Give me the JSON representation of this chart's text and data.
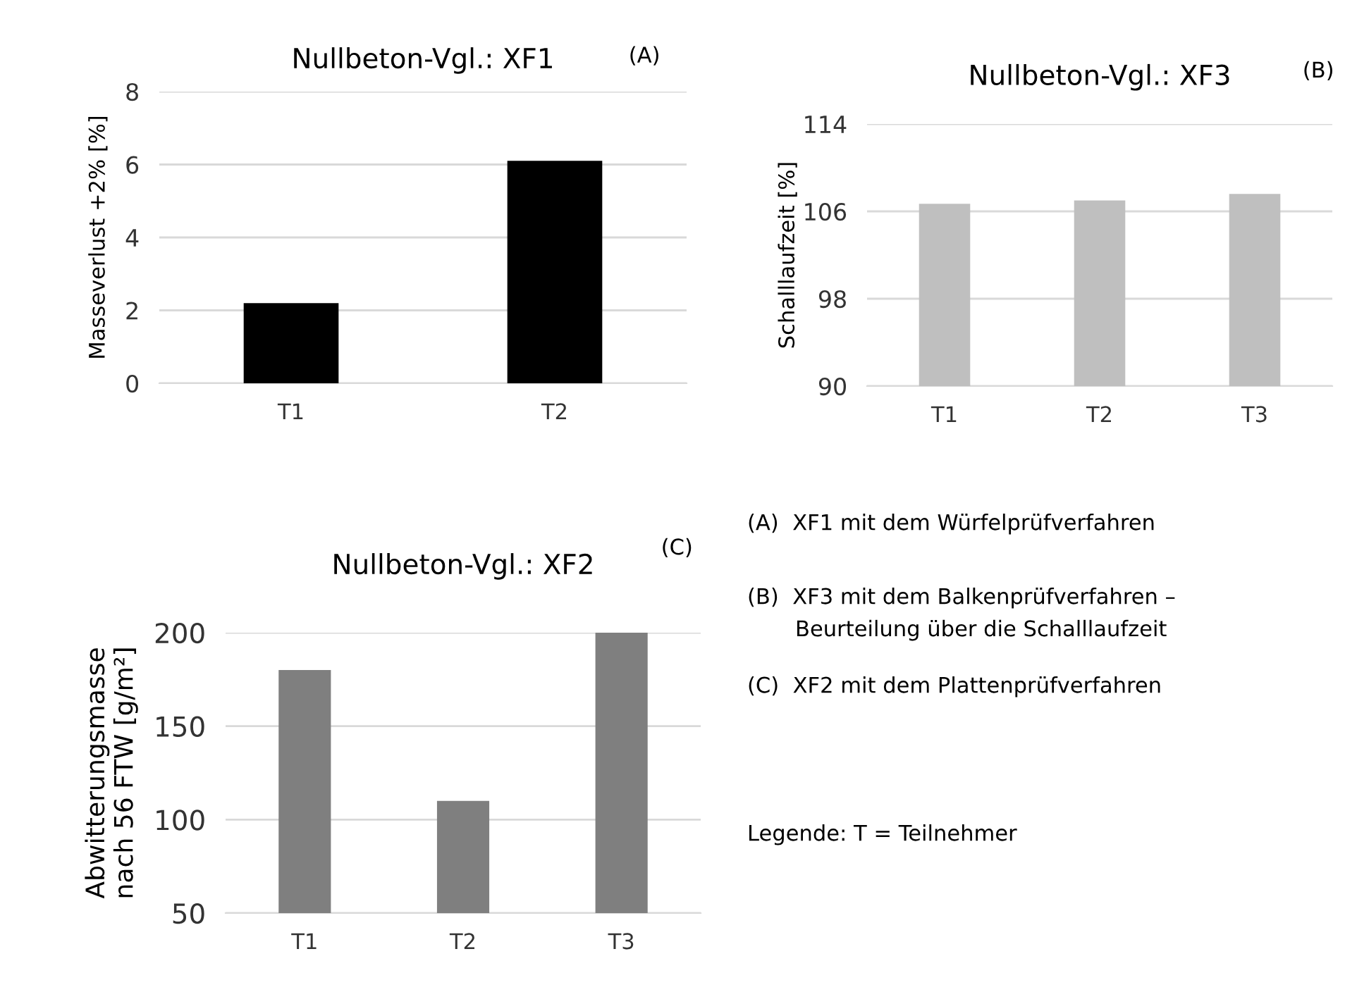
{
  "chart_data": [
    {
      "type": "bar",
      "title": "Nullbeton-Vgl.: XF1",
      "ylabel": "Masseverlust +2% [%]",
      "annotations": [
        "(A)"
      ],
      "categories": [
        "T1",
        "T2"
      ],
      "values": [
        2.2,
        6.1
      ],
      "color": "#000000",
      "ylim": [
        0,
        8
      ],
      "yticks": [
        0,
        2,
        4,
        6,
        8
      ],
      "grid": "y"
    },
    {
      "type": "bar",
      "title": "Nullbeton-Vgl.: XF3",
      "ylabel": "Schalllaufzeit [%]",
      "annotations": [
        "(B)"
      ],
      "categories": [
        "T1",
        "T2",
        "T3"
      ],
      "values": [
        106.7,
        107.0,
        107.6
      ],
      "color": "#bfbfbf",
      "ylim": [
        90,
        114
      ],
      "yticks": [
        90,
        98,
        106,
        114
      ],
      "grid": "y"
    },
    {
      "type": "bar",
      "title": "Nullbeton-Vgl.: XF2",
      "ylabel": "Abwitterungsmasse\nnach 56 FTW [g/m²]",
      "annotations": [
        "(C)"
      ],
      "categories": [
        "T1",
        "T2",
        "T3"
      ],
      "values": [
        180,
        110,
        200
      ],
      "color": "#7f7f7f",
      "ylim": [
        50,
        200
      ],
      "yticks": [
        50,
        100,
        150,
        200
      ],
      "grid": "y"
    },
    {
      "type": "other",
      "annotations": [
        "(A)  XF1 mit dem Würfelprüfverfahren",
        "(B)  XF3 mit dem Balkenprüfverfahren –\n       Beurteilung über die Schalllaufzeit",
        "(C)  XF2 mit dem Plattenprüfverfahren",
        "Legende: T = Teilnehmer"
      ]
    }
  ]
}
